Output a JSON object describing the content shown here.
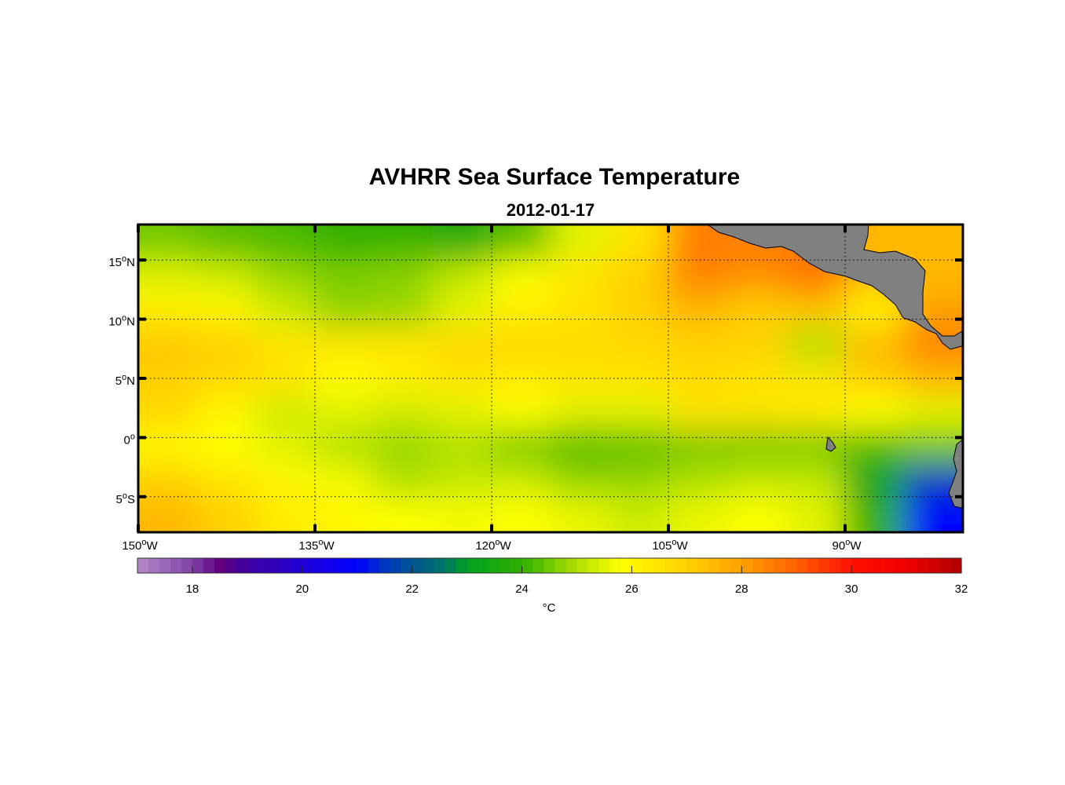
{
  "chart_data": {
    "type": "heatmap",
    "title": "AVHRR Sea Surface Temperature",
    "subtitle": "2012-01-17",
    "lon_range": [
      -150,
      -80
    ],
    "lat_range": [
      -8,
      18
    ],
    "lon_ticks": [
      {
        "value": -150,
        "label": "150",
        "suffix": "W"
      },
      {
        "value": -135,
        "label": "135",
        "suffix": "W"
      },
      {
        "value": -120,
        "label": "120",
        "suffix": "W"
      },
      {
        "value": -105,
        "label": "105",
        "suffix": "W"
      },
      {
        "value": -90,
        "label": "90",
        "suffix": "W"
      }
    ],
    "lat_ticks": [
      {
        "value": 15,
        "label": "15",
        "suffix": "N"
      },
      {
        "value": 10,
        "label": "10",
        "suffix": "N"
      },
      {
        "value": 5,
        "label": "5",
        "suffix": "N"
      },
      {
        "value": 0,
        "label": "0",
        "suffix": ""
      },
      {
        "value": -5,
        "label": "5",
        "suffix": "S"
      }
    ],
    "grid": true,
    "grid_lons": [
      -147.5,
      -142.5,
      -137.5,
      -132.5,
      -127.5,
      -122.5,
      -117.5,
      -112.5,
      -107.5,
      -102.5,
      -97.5,
      -92.5,
      -87.5,
      -82.5
    ],
    "grid_lats": [
      17,
      14,
      11,
      8,
      5,
      2,
      -1,
      -4,
      -7
    ],
    "sst": [
      [
        24.5,
        24.3,
        24.2,
        24.0,
        24.0,
        23.5,
        24.3,
        25.5,
        26.5,
        28.5,
        28.5,
        28.5,
        27.5,
        27.5
      ],
      [
        25.5,
        25.3,
        24.8,
        24.6,
        24.7,
        25.2,
        25.8,
        26.5,
        27.0,
        28.5,
        28.3,
        28.8,
        27.5,
        27.5
      ],
      [
        26.2,
        26.0,
        25.3,
        24.7,
        24.8,
        25.5,
        26.2,
        26.5,
        27.0,
        27.5,
        27.0,
        27.2,
        26.0,
        28.0
      ],
      [
        27.2,
        27.0,
        26.5,
        26.5,
        26.5,
        26.8,
        26.8,
        26.7,
        26.8,
        27.0,
        27.0,
        25.0,
        27.5,
        28.5
      ],
      [
        27.0,
        26.8,
        26.5,
        25.8,
        26.2,
        26.5,
        26.3,
        26.5,
        26.5,
        26.7,
        26.5,
        26.5,
        27.0,
        27.5
      ],
      [
        26.8,
        26.0,
        25.3,
        25.5,
        25.3,
        25.5,
        25.8,
        25.5,
        25.5,
        26.5,
        26.5,
        26.3,
        25.8,
        25.5
      ],
      [
        26.0,
        25.8,
        25.5,
        25.0,
        24.8,
        25.0,
        24.5,
        24.2,
        24.3,
        24.5,
        24.5,
        24.5,
        24.2,
        24.5
      ],
      [
        27.0,
        26.5,
        26.0,
        25.7,
        25.0,
        25.2,
        25.3,
        24.8,
        24.8,
        25.0,
        25.2,
        25.2,
        23.0,
        21.5
      ],
      [
        27.5,
        27.0,
        26.3,
        26.0,
        25.8,
        25.7,
        25.8,
        25.6,
        25.3,
        25.6,
        25.8,
        25.5,
        24.0,
        21.0
      ]
    ],
    "colorbar": {
      "range": [
        17,
        32
      ],
      "ticks": [
        "18",
        "20",
        "22",
        "24",
        "26",
        "28",
        "30",
        "32"
      ],
      "tick_values": [
        18,
        20,
        22,
        24,
        26,
        28,
        30,
        32
      ],
      "label": "°C",
      "stops": [
        [
          17,
          "#b48cc8"
        ],
        [
          18,
          "#8040a8"
        ],
        [
          18.5,
          "#600080"
        ],
        [
          19,
          "#4000a0"
        ],
        [
          20,
          "#2000d8"
        ],
        [
          21,
          "#0000ff"
        ],
        [
          21.5,
          "#0035c0"
        ],
        [
          22,
          "#005590"
        ],
        [
          22.5,
          "#007070"
        ],
        [
          23,
          "#00a020"
        ],
        [
          24,
          "#30b000"
        ],
        [
          25,
          "#b0e000"
        ],
        [
          25.8,
          "#ffff00"
        ],
        [
          27,
          "#ffd000"
        ],
        [
          28,
          "#ffa000"
        ],
        [
          29,
          "#ff6000"
        ],
        [
          30,
          "#ff1000"
        ],
        [
          31,
          "#f00000"
        ],
        [
          32,
          "#b00000"
        ]
      ]
    },
    "land_color": "#808080"
  }
}
